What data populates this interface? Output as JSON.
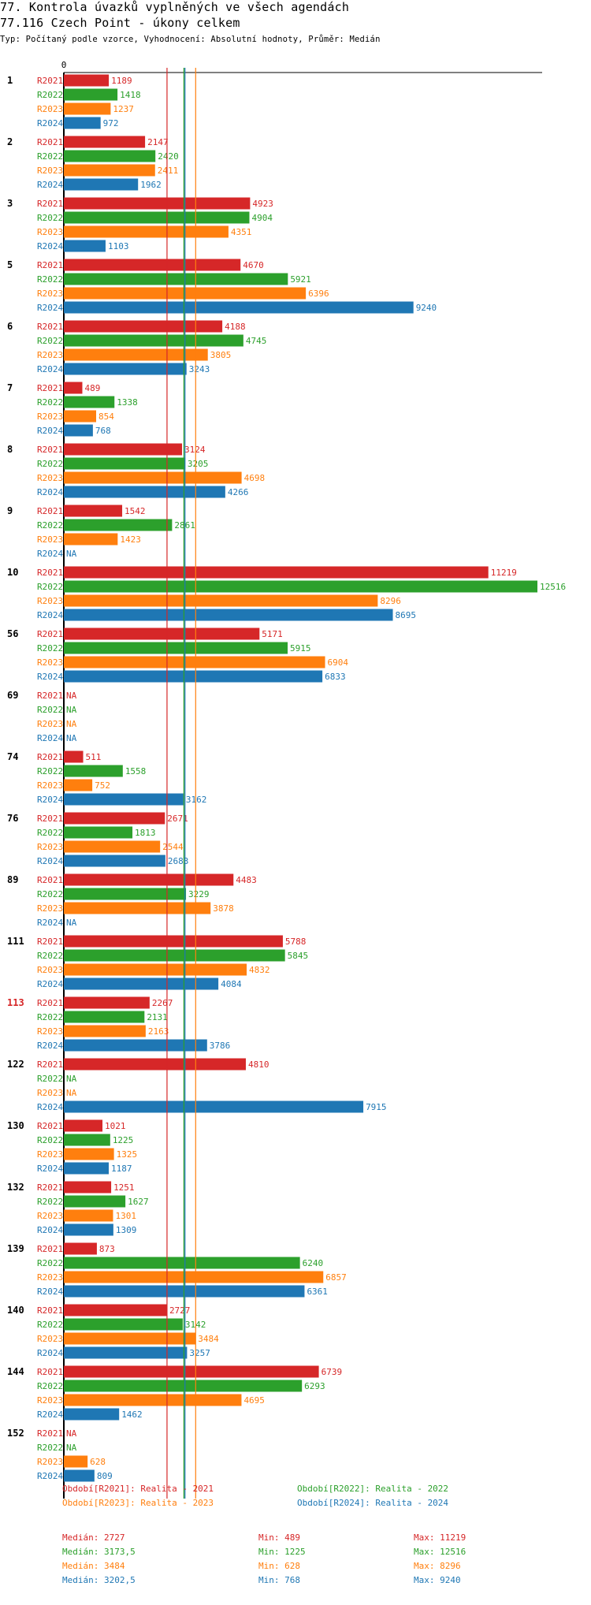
{
  "header": {
    "title": "77. Kontrola úvazků vyplněných ve všech agendách",
    "subtitle": "77.116 Czech Point - úkony celkem",
    "type_line": "Typ: Počítaný podle vzorce, Vyhodnocení: Absolutní hodnoty, Průměr: Medián"
  },
  "colors": {
    "R2021": "#d62728",
    "R2022": "#2ca02c",
    "R2023": "#ff7f0e",
    "R2024": "#1f77b4",
    "highlight": "#d62728"
  },
  "chart_data": {
    "type": "bar",
    "orientation": "horizontal",
    "axis_zero_label": "0",
    "xlim": [
      0,
      12516
    ],
    "na_label": "NA",
    "series_names": [
      "R2021",
      "R2022",
      "R2023",
      "R2024"
    ],
    "medians": [
      2727,
      3173.5,
      3484,
      3202.5
    ],
    "groups": [
      {
        "label": "1",
        "highlight": false,
        "values": [
          1189,
          1418,
          1237,
          972
        ]
      },
      {
        "label": "2",
        "highlight": false,
        "values": [
          2147,
          2420,
          2411,
          1962
        ]
      },
      {
        "label": "3",
        "highlight": false,
        "values": [
          4923,
          4904,
          4351,
          1103
        ]
      },
      {
        "label": "5",
        "highlight": false,
        "values": [
          4670,
          5921,
          6396,
          9240
        ]
      },
      {
        "label": "6",
        "highlight": false,
        "values": [
          4188,
          4745,
          3805,
          3243
        ]
      },
      {
        "label": "7",
        "highlight": false,
        "values": [
          489,
          1338,
          854,
          768
        ]
      },
      {
        "label": "8",
        "highlight": false,
        "values": [
          3124,
          3205,
          4698,
          4266
        ]
      },
      {
        "label": "9",
        "highlight": false,
        "values": [
          1542,
          2861,
          1423,
          null
        ]
      },
      {
        "label": "10",
        "highlight": false,
        "values": [
          11219,
          12516,
          8296,
          8695
        ]
      },
      {
        "label": "56",
        "highlight": false,
        "values": [
          5171,
          5915,
          6904,
          6833
        ]
      },
      {
        "label": "69",
        "highlight": false,
        "values": [
          null,
          null,
          null,
          null
        ]
      },
      {
        "label": "74",
        "highlight": false,
        "values": [
          511,
          1558,
          752,
          3162
        ]
      },
      {
        "label": "76",
        "highlight": false,
        "values": [
          2671,
          1813,
          2544,
          2683
        ]
      },
      {
        "label": "89",
        "highlight": false,
        "values": [
          4483,
          3229,
          3878,
          null
        ]
      },
      {
        "label": "111",
        "highlight": false,
        "values": [
          5788,
          5845,
          4832,
          4084
        ]
      },
      {
        "label": "113",
        "highlight": true,
        "values": [
          2267,
          2131,
          2163,
          3786
        ]
      },
      {
        "label": "122",
        "highlight": false,
        "values": [
          4810,
          null,
          null,
          7915
        ]
      },
      {
        "label": "130",
        "highlight": false,
        "values": [
          1021,
          1225,
          1325,
          1187
        ]
      },
      {
        "label": "132",
        "highlight": false,
        "values": [
          1251,
          1627,
          1301,
          1309
        ]
      },
      {
        "label": "139",
        "highlight": false,
        "values": [
          873,
          6240,
          6857,
          6361
        ]
      },
      {
        "label": "140",
        "highlight": false,
        "values": [
          2727,
          3142,
          3484,
          3257
        ]
      },
      {
        "label": "144",
        "highlight": false,
        "values": [
          6739,
          6293,
          4695,
          1462
        ]
      },
      {
        "label": "152",
        "highlight": false,
        "values": [
          null,
          null,
          628,
          809
        ]
      }
    ]
  },
  "legend": [
    {
      "key": "R2021",
      "text": "Období[R2021]: Realita - 2021"
    },
    {
      "key": "R2022",
      "text": "Období[R2022]: Realita - 2022"
    },
    {
      "key": "R2023",
      "text": "Období[R2023]: Realita - 2023"
    },
    {
      "key": "R2024",
      "text": "Období[R2024]: Realita - 2024"
    }
  ],
  "stats": [
    {
      "key": "R2021",
      "median": "Medián: 2727",
      "min": "Min: 489",
      "max": "Max: 11219"
    },
    {
      "key": "R2022",
      "median": "Medián: 3173,5",
      "min": "Min: 1225",
      "max": "Max: 12516"
    },
    {
      "key": "R2023",
      "median": "Medián: 3484",
      "min": "Min: 628",
      "max": "Max: 8296"
    },
    {
      "key": "R2024",
      "median": "Medián: 3202,5",
      "min": "Min: 768",
      "max": "Max: 9240"
    }
  ]
}
